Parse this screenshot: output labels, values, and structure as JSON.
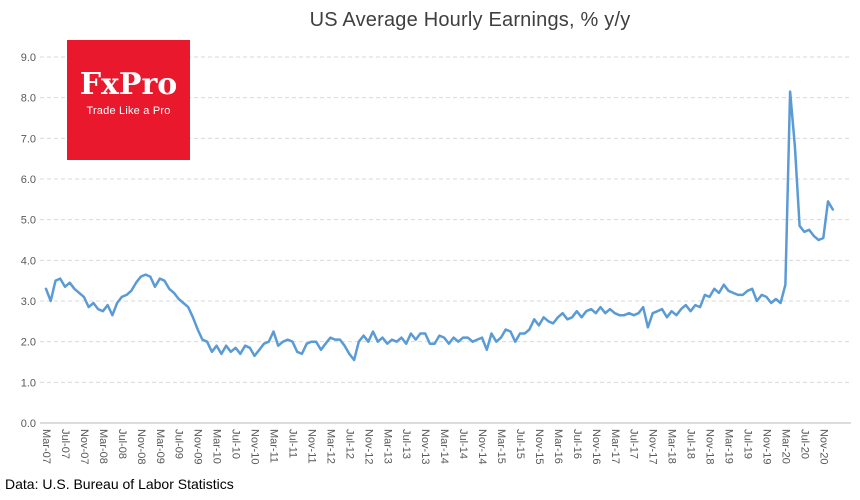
{
  "title": "US Average Hourly Earnings, % y/y",
  "logo": {
    "brand": "FxPro",
    "tagline": "Trade Like a Pro",
    "bg_color": "#E9182C",
    "text_color": "#FFFFFF"
  },
  "footer": {
    "source": "Data: U.S. Bureau of Labor Statistics"
  },
  "colors": {
    "line": "#5B9BD5",
    "gridline": "#DADADA",
    "axis_line": "#C6C6C6",
    "tick_text": "#595959",
    "title_text": "#3F3F3F"
  },
  "chart_data": {
    "type": "line",
    "title": "US Average Hourly Earnings, % y/y",
    "series_name": "US Average Hourly Earnings, % y/y",
    "frequency": "monthly",
    "x_start": "Mar-07",
    "x_end": "Jan-21",
    "ylim": [
      0,
      9
    ],
    "y_step": 1,
    "grid": "horizontal-dashed",
    "legend": "none",
    "x_tick_labels": [
      "Mar-07",
      "Jul-07",
      "Nov-07",
      "Mar-08",
      "Jul-08",
      "Nov-08",
      "Mar-09",
      "Jul-09",
      "Nov-09",
      "Mar-10",
      "Jul-10",
      "Nov-10",
      "Mar-11",
      "Jul-11",
      "Nov-11",
      "Mar-12",
      "Jul-12",
      "Nov-12",
      "Mar-13",
      "Jul-13",
      "Nov-13",
      "Mar-14",
      "Jul-14",
      "Nov-14",
      "Mar-15",
      "Jul-15",
      "Nov-15",
      "Mar-16",
      "Jul-16",
      "Nov-16",
      "Mar-17",
      "Jul-17",
      "Nov-17",
      "Mar-18",
      "Jul-18",
      "Nov-18",
      "Mar-19",
      "Jul-19",
      "Nov-19",
      "Mar-20",
      "Jul-20",
      "Nov-20"
    ],
    "y_tick_labels": [
      "0.0",
      "1.0",
      "2.0",
      "3.0",
      "4.0",
      "5.0",
      "6.0",
      "7.0",
      "8.0",
      "9.0"
    ],
    "values": [
      3.3,
      3.0,
      3.5,
      3.55,
      3.35,
      3.45,
      3.3,
      3.2,
      3.1,
      2.85,
      2.95,
      2.8,
      2.75,
      2.9,
      2.65,
      2.95,
      3.1,
      3.15,
      3.25,
      3.45,
      3.6,
      3.65,
      3.6,
      3.35,
      3.55,
      3.5,
      3.3,
      3.2,
      3.05,
      2.95,
      2.85,
      2.6,
      2.3,
      2.05,
      2.0,
      1.75,
      1.9,
      1.7,
      1.9,
      1.75,
      1.85,
      1.7,
      1.9,
      1.85,
      1.65,
      1.8,
      1.95,
      2.0,
      2.25,
      1.9,
      2.0,
      2.05,
      2.0,
      1.75,
      1.7,
      1.95,
      2.0,
      2.0,
      1.8,
      1.95,
      2.1,
      2.05,
      2.05,
      1.9,
      1.7,
      1.55,
      2.0,
      2.15,
      2.0,
      2.25,
      2.0,
      2.1,
      1.95,
      2.05,
      2.0,
      2.1,
      1.95,
      2.2,
      2.05,
      2.2,
      2.2,
      1.95,
      1.95,
      2.15,
      2.1,
      1.95,
      2.1,
      2.0,
      2.1,
      2.1,
      2.0,
      2.05,
      2.1,
      1.8,
      2.2,
      2.0,
      2.1,
      2.3,
      2.25,
      2.0,
      2.2,
      2.2,
      2.3,
      2.55,
      2.4,
      2.6,
      2.5,
      2.45,
      2.6,
      2.7,
      2.55,
      2.6,
      2.75,
      2.6,
      2.75,
      2.8,
      2.7,
      2.85,
      2.7,
      2.8,
      2.7,
      2.65,
      2.65,
      2.7,
      2.65,
      2.7,
      2.85,
      2.35,
      2.7,
      2.75,
      2.8,
      2.6,
      2.75,
      2.65,
      2.8,
      2.9,
      2.75,
      2.9,
      2.85,
      3.15,
      3.1,
      3.3,
      3.2,
      3.4,
      3.25,
      3.2,
      3.15,
      3.15,
      3.25,
      3.3,
      3.0,
      3.15,
      3.1,
      2.95,
      3.05,
      2.95,
      3.4,
      8.15,
      6.8,
      4.85,
      4.7,
      4.75,
      4.6,
      4.5,
      4.55,
      5.45,
      5.25
    ]
  }
}
